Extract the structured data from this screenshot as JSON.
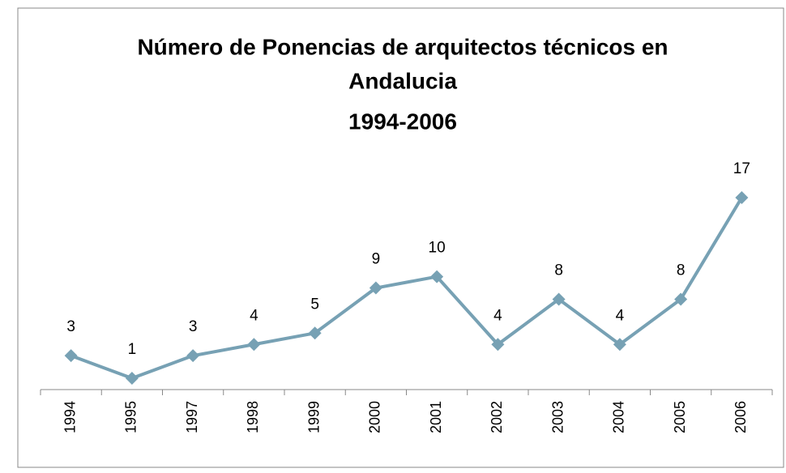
{
  "chart_data": {
    "type": "line",
    "title": [
      "Número de Ponencias de arquitectos técnicos en",
      "Andalucia",
      "1994-2006"
    ],
    "categories": [
      "1994",
      "1995",
      "1997",
      "1998",
      "1999",
      "2000",
      "2001",
      "2002",
      "2003",
      "2004",
      "2005",
      "2006"
    ],
    "values": [
      3,
      1,
      3,
      4,
      5,
      9,
      10,
      4,
      8,
      4,
      8,
      17
    ],
    "color": "#77a1b4"
  }
}
